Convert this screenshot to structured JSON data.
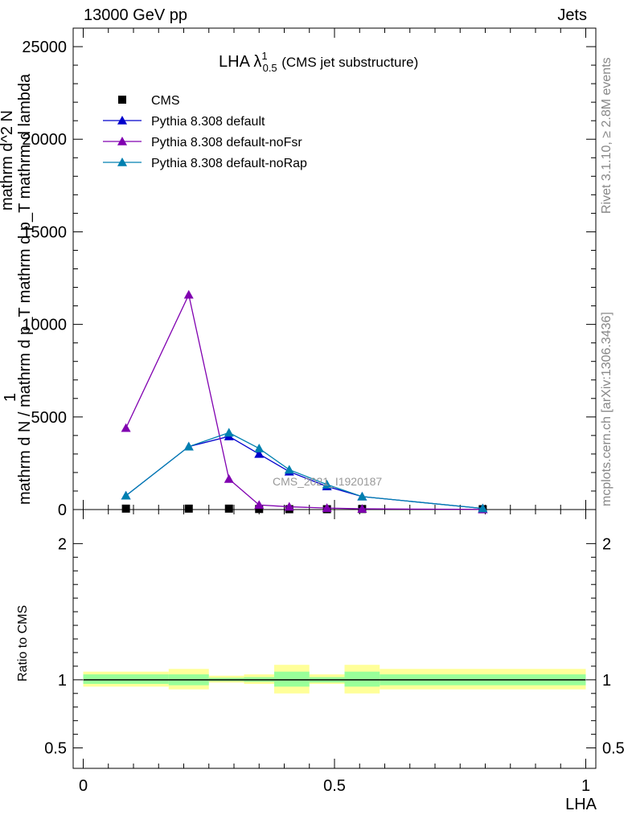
{
  "header": {
    "left": "13000 GeV pp",
    "right": "Jets"
  },
  "side": {
    "rivet": "Rivet 3.1.10, ≥ 2.8M events",
    "mcplots": "mcplots.cern.ch [arXiv:1306.3436]"
  },
  "title": {
    "main": "LHA λ",
    "sup": "1",
    "sub": "0.5",
    "suffix": "(CMS jet substructure)"
  },
  "watermark": "CMS_2021_I1920187",
  "ylabel_lines": [
    "1",
    "mathrm d N / mathrm d p_T mathrm d p_T mathrm d lambda",
    "mathrm d^2 N"
  ],
  "ratio_ylabel": "Ratio to CMS",
  "xlabel": "LHA",
  "colors": {
    "cms": "#000000",
    "default": "#0000cc",
    "noFsr": "#8000b0",
    "noRap": "#0080b0",
    "band_outer": "#ffff99",
    "band_inner": "#99ff99"
  },
  "chart_data": [
    {
      "type": "line",
      "panel": "main",
      "xlim": [
        -0.02,
        1.02
      ],
      "ylim": [
        0,
        26000
      ],
      "yticks": [
        0,
        5000,
        10000,
        15000,
        20000,
        25000
      ],
      "ytick_labels": [
        "0",
        "5000",
        "10000",
        "15000",
        "20000",
        "25000"
      ],
      "legend_position": "top-left",
      "legend": [
        "CMS",
        "Pythia 8.308 default",
        "Pythia 8.308 default-noFsr",
        "Pythia 8.308 default-noRap"
      ],
      "series": [
        {
          "name": "CMS",
          "color_key": "cms",
          "marker": "square",
          "x": [
            0.085,
            0.21,
            0.29,
            0.35,
            0.41,
            0.485,
            0.555,
            0.795
          ],
          "y": [
            50,
            50,
            50,
            30,
            20,
            20,
            30,
            20
          ]
        },
        {
          "name": "Pythia 8.308 default",
          "color_key": "default",
          "marker": "triangle",
          "x": [
            0.085,
            0.21,
            0.29,
            0.35,
            0.41,
            0.485,
            0.555,
            0.795
          ],
          "y": [
            750,
            3400,
            3950,
            3000,
            2050,
            1250,
            700,
            60
          ]
        },
        {
          "name": "Pythia 8.308 default-noFsr",
          "color_key": "noFsr",
          "marker": "triangle",
          "x": [
            0.085,
            0.21,
            0.29,
            0.35,
            0.41,
            0.485,
            0.555,
            0.795
          ],
          "y": [
            4400,
            11600,
            1650,
            250,
            150,
            80,
            40,
            10
          ]
        },
        {
          "name": "Pythia 8.308 default-noRap",
          "color_key": "noRap",
          "marker": "triangle",
          "x": [
            0.085,
            0.21,
            0.29,
            0.35,
            0.41,
            0.485,
            0.555,
            0.795
          ],
          "y": [
            750,
            3400,
            4150,
            3300,
            2150,
            1350,
            700,
            60
          ]
        }
      ]
    },
    {
      "type": "area",
      "panel": "ratio",
      "xlim": [
        -0.02,
        1.02
      ],
      "ylim": [
        0.35,
        2.25
      ],
      "yticks": [
        0.5,
        1,
        2
      ],
      "ytick_labels": [
        "0.5",
        "1",
        "2"
      ],
      "xticks": [
        0,
        0.5,
        1
      ],
      "xtick_labels": [
        "0",
        "0.5",
        "1"
      ],
      "reference": 1,
      "bins": [
        {
          "lo": 0.0,
          "hi": 0.17,
          "outer": [
            0.95,
            1.06
          ],
          "inner": [
            0.97,
            1.04
          ]
        },
        {
          "lo": 0.17,
          "hi": 0.25,
          "outer": [
            0.93,
            1.08
          ],
          "inner": [
            0.96,
            1.04
          ]
        },
        {
          "lo": 0.25,
          "hi": 0.32,
          "outer": [
            0.98,
            1.03
          ],
          "inner": [
            0.99,
            1.015
          ]
        },
        {
          "lo": 0.32,
          "hi": 0.38,
          "outer": [
            0.97,
            1.04
          ],
          "inner": [
            0.985,
            1.02
          ]
        },
        {
          "lo": 0.38,
          "hi": 0.45,
          "outer": [
            0.9,
            1.11
          ],
          "inner": [
            0.95,
            1.06
          ]
        },
        {
          "lo": 0.45,
          "hi": 0.52,
          "outer": [
            0.97,
            1.04
          ],
          "inner": [
            0.98,
            1.02
          ]
        },
        {
          "lo": 0.52,
          "hi": 0.59,
          "outer": [
            0.9,
            1.11
          ],
          "inner": [
            0.95,
            1.06
          ]
        },
        {
          "lo": 0.59,
          "hi": 1.0,
          "outer": [
            0.93,
            1.08
          ],
          "inner": [
            0.96,
            1.04
          ]
        }
      ]
    }
  ]
}
